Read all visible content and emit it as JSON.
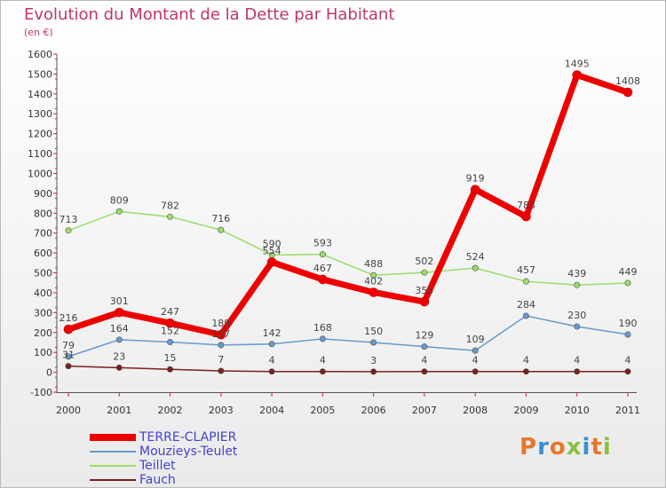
{
  "header": {
    "title": "Evolution du Montant de la Dette par Habitant",
    "subtitle": "(en €)"
  },
  "logo": {
    "text": "Proxiti"
  },
  "chart_data": {
    "type": "line",
    "title": "Evolution du Montant de la Dette par Habitant",
    "subtitle": "(en €)",
    "xlabel": "",
    "ylabel": "",
    "x": [
      "2000",
      "2001",
      "2002",
      "2003",
      "2004",
      "2005",
      "2006",
      "2007",
      "2008",
      "2009",
      "2010",
      "2011"
    ],
    "ylim": [
      -100,
      1600
    ],
    "yticks": [
      -100,
      0,
      100,
      200,
      300,
      400,
      500,
      600,
      700,
      800,
      900,
      1000,
      1100,
      1200,
      1300,
      1400,
      1500,
      1600
    ],
    "grid": false,
    "legend_position": "bottom-left",
    "series": [
      {
        "name": "TERRE-CLAPIER",
        "color": "#ee0000",
        "width": 7,
        "values": [
          216,
          301,
          247,
          189,
          554,
          467,
          402,
          355,
          919,
          783,
          1495,
          1408
        ]
      },
      {
        "name": "Mouzieys-Teulet",
        "color": "#6699cc",
        "width": 1.5,
        "values": [
          79,
          164,
          152,
          137,
          142,
          168,
          150,
          129,
          109,
          284,
          230,
          190
        ]
      },
      {
        "name": "Teillet",
        "color": "#99dd66",
        "width": 1.5,
        "values": [
          713,
          809,
          782,
          716,
          590,
          593,
          488,
          502,
          524,
          457,
          439,
          449
        ]
      },
      {
        "name": "Fauch",
        "color": "#7a1f1f",
        "width": 1.5,
        "values": [
          31,
          23,
          15,
          7,
          4,
          4,
          3,
          4,
          4,
          4,
          4,
          4
        ]
      }
    ]
  }
}
